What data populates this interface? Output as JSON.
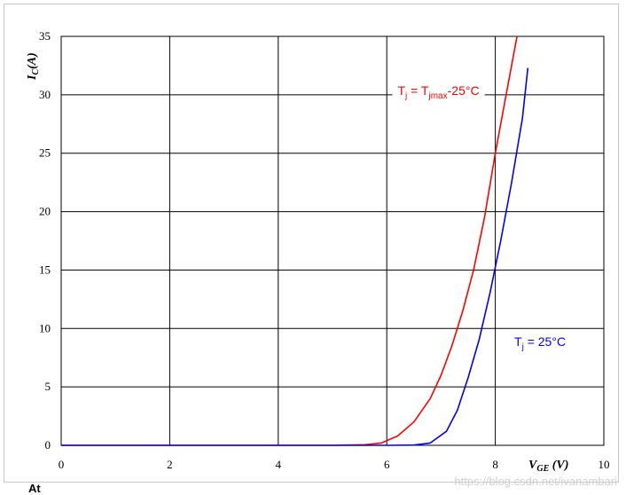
{
  "chart_data": {
    "type": "line",
    "title": "",
    "xlabel": "V",
    "xlabel_sub": "GE",
    "xlabel_unit": " (V)",
    "ylabel": "I",
    "ylabel_sub": "C",
    "ylabel_unit": "(A)",
    "xlim": [
      0,
      10
    ],
    "ylim": [
      0,
      35
    ],
    "x_ticks": [
      "0",
      "2",
      "4",
      "6",
      "8",
      "10"
    ],
    "x_tick_values": [
      0,
      2,
      4,
      6,
      8,
      10
    ],
    "y_ticks": [
      "0",
      "5",
      "10",
      "15",
      "20",
      "25",
      "30",
      "35"
    ],
    "y_tick_values": [
      0,
      5,
      10,
      15,
      20,
      25,
      30,
      35
    ],
    "grid": true,
    "series": [
      {
        "color": "#ff0000",
        "x": [
          0,
          5.0,
          5.6,
          5.9,
          6.2,
          6.5,
          6.8,
          7.0,
          7.2,
          7.4,
          7.6,
          7.8,
          8.0,
          8.2,
          8.4
        ],
        "y": [
          0,
          0,
          0.05,
          0.2,
          0.8,
          2.0,
          4.0,
          6.0,
          8.5,
          11.5,
          15.0,
          19.5,
          25.0,
          30.0,
          35.0
        ]
      },
      {
        "color": "#0000ff",
        "x": [
          0,
          6.0,
          6.5,
          6.8,
          7.1,
          7.3,
          7.5,
          7.7,
          7.9,
          8.1,
          8.3,
          8.5,
          8.6
        ],
        "y": [
          0,
          0,
          0.02,
          0.2,
          1.2,
          3.0,
          5.8,
          9.0,
          13.0,
          17.5,
          22.5,
          28.0,
          32.3
        ]
      }
    ],
    "annotations": [
      {
        "color": "#ff0000",
        "base": "T",
        "sub": "j",
        "eq": " = T",
        "sub2": "jmax",
        "tail": "-25°C",
        "x": 6.2,
        "y": 30
      },
      {
        "color": "#0000ff",
        "base": "T",
        "sub": "j",
        "eq": " = 25°C",
        "sub2": "",
        "tail": "",
        "x": 8.35,
        "y": 8.5
      }
    ]
  },
  "watermark": "https://blog.csdn.net/ivanambari",
  "corner_text": "At"
}
